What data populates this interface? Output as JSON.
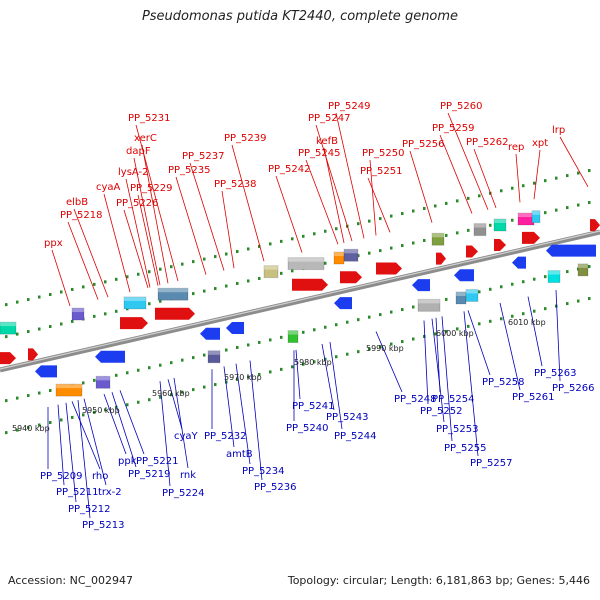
{
  "title": "Pseudomonas putida KT2440, complete genome",
  "footer": {
    "accession": "Accession: NC_002947",
    "topology": "Topology: circular; Length: 6,181,863 bp; Genes: 5,446"
  },
  "colors": {
    "forward_label": "#dd0000",
    "reverse_label": "#0000bb",
    "backbone": "#8c8c8c",
    "dots": "#2a8a2a"
  },
  "ticks": [
    "5940 kbp",
    "5950 kbp",
    "5960 kbp",
    "5970 kbp",
    "5980 kbp",
    "5990 kbp",
    "6000 kbp",
    "6010 kbp"
  ],
  "forward_genes": [
    "ppx",
    "PP_5218",
    "elbB",
    "cyaA",
    "PP_5226",
    "lysA-2",
    "PP_5229",
    "dapF",
    "xerC",
    "PP_5231",
    "PP_5235",
    "PP_5237",
    "PP_5238",
    "PP_5239",
    "PP_5242",
    "PP_5245",
    "kefB",
    "PP_5247",
    "PP_5249",
    "PP_5250",
    "PP_5251",
    "PP_5256",
    "PP_5259",
    "PP_5260",
    "PP_5262",
    "rep",
    "xpt",
    "lrp"
  ],
  "reverse_genes": [
    "PP_5209",
    "PP_5211",
    "rho",
    "PP_5212",
    "trx-2",
    "PP_5213",
    "ppk",
    "PP_5219",
    "PP_5221",
    "cyaY",
    "rnk",
    "PP_5224",
    "PP_5232",
    "amtB",
    "PP_5234",
    "PP_5236",
    "PP_5241",
    "PP_5240",
    "PP_5243",
    "PP_5244",
    "PP_5248",
    "PP_5252",
    "PP_5254",
    "PP_5253",
    "PP_5255",
    "PP_5257",
    "PP_5258",
    "PP_5261",
    "PP_5263",
    "PP_5266"
  ]
}
